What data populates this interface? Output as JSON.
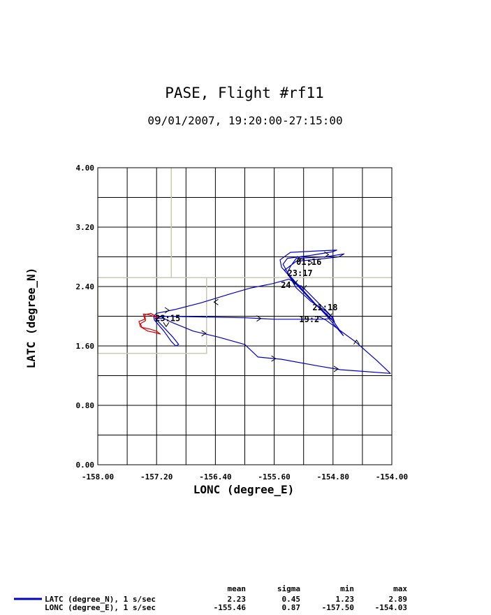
{
  "chart_data": {
    "type": "line",
    "title": "PASE, Flight #rf11",
    "subtitle": "09/01/2007, 19:20:00-27:15:00",
    "xlabel": "LONC (degree_E)",
    "ylabel": "LATC (degree_N)",
    "xlim": [
      -158.0,
      -154.0
    ],
    "ylim": [
      0.0,
      4.0
    ],
    "x_tick_labels": [
      "-158.00",
      "-157.20",
      "-156.40",
      "-155.60",
      "-154.80",
      "-154.00"
    ],
    "y_tick_labels": [
      "0.00",
      "0.80",
      "1.60",
      "2.40",
      "3.20",
      "4.00"
    ],
    "grid": true,
    "x_grid_step": 0.4,
    "y_grid_step": 0.4,
    "colors": {
      "track": "#0000cc",
      "takeoff_segment": "#dd0000",
      "boxes": "#c8c8b4"
    },
    "boxes": [
      {
        "x": [
          -158.0,
          -156.52
        ],
        "y": [
          1.5,
          2.52
        ]
      },
      {
        "x": [
          -157.0,
          -154.0
        ],
        "y": [
          2.52,
          2.52
        ]
      },
      {
        "x": [
          -157.0,
          -157.0
        ],
        "y": [
          2.52,
          4.0
        ]
      }
    ],
    "red_track": [
      [
        -157.18,
        1.98
      ],
      [
        -157.28,
        2.04
      ],
      [
        -157.36,
        2.02
      ],
      [
        -157.35,
        1.94
      ],
      [
        -157.42,
        1.9
      ],
      [
        -157.4,
        1.85
      ],
      [
        -157.3,
        1.83
      ],
      [
        -157.2,
        1.8
      ],
      [
        -157.15,
        1.76
      ],
      [
        -157.22,
        1.78
      ],
      [
        -157.32,
        1.8
      ],
      [
        -157.42,
        1.86
      ],
      [
        -157.44,
        1.93
      ],
      [
        -157.36,
        1.96
      ],
      [
        -157.38,
        2.03
      ],
      [
        -157.3,
        2.02
      ],
      [
        -157.2,
        1.98
      ]
    ],
    "blue_track": [
      [
        -157.2,
        1.98
      ],
      [
        -157.1,
        2.0
      ],
      [
        -156.0,
        1.98
      ],
      [
        -155.6,
        1.96
      ],
      [
        -154.95,
        1.96
      ],
      [
        -154.8,
        1.97
      ],
      [
        -154.9,
        2.07
      ],
      [
        -155.1,
        2.2
      ],
      [
        -155.3,
        2.38
      ],
      [
        -155.42,
        2.58
      ],
      [
        -155.38,
        2.67
      ],
      [
        -155.3,
        2.78
      ],
      [
        -154.9,
        2.8
      ],
      [
        -154.65,
        2.84
      ],
      [
        -154.72,
        2.8
      ],
      [
        -154.98,
        2.77
      ],
      [
        -155.3,
        2.74
      ],
      [
        -155.46,
        2.62
      ],
      [
        -155.35,
        2.48
      ],
      [
        -155.1,
        2.22
      ],
      [
        -154.9,
        2.04
      ],
      [
        -154.8,
        1.94
      ],
      [
        -154.66,
        1.74
      ],
      [
        -154.9,
        2.02
      ],
      [
        -155.12,
        2.25
      ],
      [
        -155.34,
        2.48
      ],
      [
        -155.5,
        2.66
      ],
      [
        -155.52,
        2.76
      ],
      [
        -155.38,
        2.86
      ],
      [
        -155.0,
        2.88
      ],
      [
        -154.75,
        2.89
      ],
      [
        -154.8,
        2.87
      ],
      [
        -155.1,
        2.82
      ],
      [
        -155.42,
        2.78
      ],
      [
        -155.48,
        2.7
      ],
      [
        -155.4,
        2.56
      ],
      [
        -155.18,
        2.32
      ],
      [
        -154.98,
        2.1
      ],
      [
        -154.78,
        1.92
      ],
      [
        -154.8,
        1.98
      ],
      [
        -155.0,
        2.18
      ],
      [
        -155.2,
        2.38
      ],
      [
        -155.4,
        2.5
      ],
      [
        -155.62,
        2.44
      ],
      [
        -155.92,
        2.38
      ],
      [
        -156.2,
        2.3
      ],
      [
        -156.6,
        2.18
      ],
      [
        -156.95,
        2.09
      ],
      [
        -157.2,
        2.04
      ],
      [
        -157.24,
        2.0
      ],
      [
        -157.23,
        1.95
      ],
      [
        -157.1,
        1.8
      ],
      [
        -157.0,
        1.66
      ],
      [
        -156.94,
        1.6
      ],
      [
        -156.9,
        1.62
      ],
      [
        -156.98,
        1.72
      ],
      [
        -157.12,
        1.87
      ],
      [
        -157.22,
        1.97
      ],
      [
        -157.1,
        1.97
      ],
      [
        -157.0,
        1.92
      ],
      [
        -156.7,
        1.8
      ],
      [
        -156.36,
        1.72
      ],
      [
        -156.0,
        1.62
      ],
      [
        -155.82,
        1.45
      ],
      [
        -155.5,
        1.42
      ],
      [
        -155.0,
        1.33
      ],
      [
        -154.7,
        1.28
      ],
      [
        -154.02,
        1.23
      ],
      [
        -154.2,
        1.4
      ],
      [
        -154.5,
        1.66
      ],
      [
        -154.72,
        1.82
      ],
      [
        -154.9,
        1.95
      ],
      [
        -155.0,
        2.0
      ]
    ],
    "arrows": [
      {
        "x": -155.8,
        "y": 1.97,
        "dir": "right"
      },
      {
        "x": -156.4,
        "y": 2.19,
        "dir": "left"
      },
      {
        "x": -157.05,
        "y": 2.08,
        "dir": "right"
      },
      {
        "x": -156.55,
        "y": 1.77,
        "dir": "right"
      },
      {
        "x": -155.6,
        "y": 1.43,
        "dir": "right"
      },
      {
        "x": -154.75,
        "y": 1.29,
        "dir": "right"
      },
      {
        "x": -154.48,
        "y": 1.66,
        "dir": "up"
      },
      {
        "x": -155.25,
        "y": 2.77,
        "dir": "right"
      },
      {
        "x": -154.88,
        "y": 2.83,
        "dir": "right"
      },
      {
        "x": -155.1,
        "y": 2.72,
        "dir": "right"
      },
      {
        "x": -155.32,
        "y": 2.45,
        "dir": "down"
      },
      {
        "x": -155.2,
        "y": 2.38,
        "dir": "down"
      },
      {
        "x": -154.85,
        "y": 2.0,
        "dir": "down"
      },
      {
        "x": -157.07,
        "y": 1.88,
        "dir": "down"
      }
    ],
    "annotations": [
      {
        "text": "01:16",
        "x": -155.3,
        "y": 2.73
      },
      {
        "text": "23:17",
        "x": -155.42,
        "y": 2.58
      },
      {
        "text": "24",
        "x": -155.51,
        "y": 2.42
      },
      {
        "text": "21:18",
        "x": -155.08,
        "y": 2.12
      },
      {
        "text": "19:2",
        "x": -155.26,
        "y": 1.96
      },
      {
        "text": "23:15",
        "x": -157.22,
        "y": 1.97
      }
    ]
  },
  "legend": {
    "headers": [
      "mean",
      "sigma",
      "min",
      "max"
    ],
    "rows": [
      {
        "label": "LATC (degree_N), 1 s/sec",
        "mean": "2.23",
        "sigma": "0.45",
        "min": "1.23",
        "max": "2.89"
      },
      {
        "label": "LONC (degree_E), 1 s/sec",
        "mean": "-155.46",
        "sigma": "0.87",
        "min": "-157.50",
        "max": "-154.03"
      }
    ]
  }
}
